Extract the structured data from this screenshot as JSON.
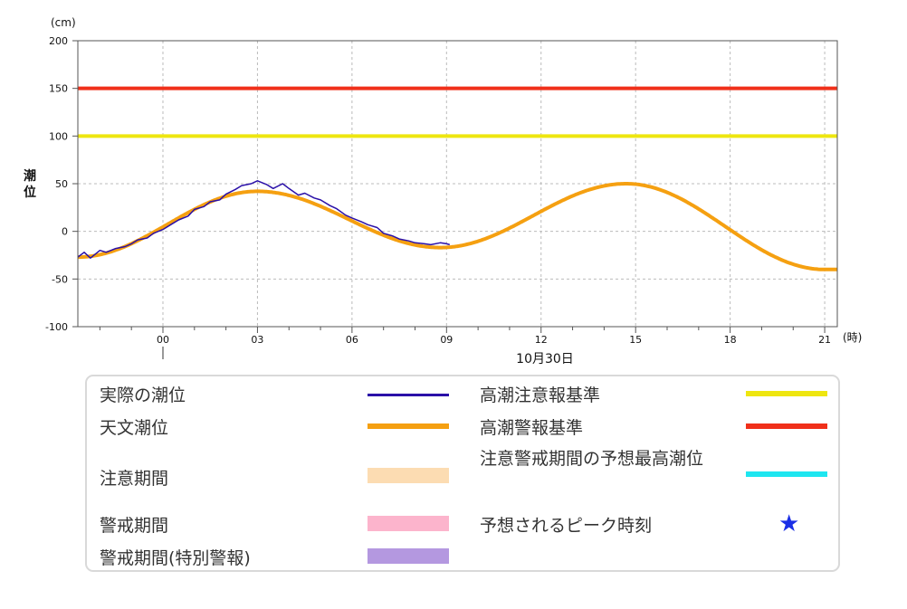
{
  "chart_data": {
    "type": "line",
    "y_unit": "(cm)",
    "ylabel": "潮位",
    "x_unit": "(時)",
    "date_label": "10月30日",
    "ylim": [
      -100,
      200
    ],
    "yticks": [
      200,
      150,
      100,
      50,
      0,
      -50,
      -100
    ],
    "xticks": [
      "00",
      "03",
      "06",
      "09",
      "12",
      "15",
      "18",
      "21"
    ],
    "xlim_hours": [
      -2.7,
      21.4
    ],
    "grid": true,
    "series": [
      {
        "name": "実際の潮位",
        "color": "#2a10a8",
        "x_hours": [
          -2.7,
          -2.5,
          -2.3,
          -2.0,
          -1.8,
          -1.5,
          -1.2,
          -1.0,
          -0.8,
          -0.5,
          -0.3,
          0.0,
          0.3,
          0.5,
          0.8,
          1.0,
          1.3,
          1.5,
          1.8,
          2.0,
          2.3,
          2.5,
          2.8,
          3.0,
          3.3,
          3.5,
          3.8,
          4.0,
          4.3,
          4.5,
          4.8,
          5.0,
          5.3,
          5.5,
          5.8,
          6.0,
          6.3,
          6.5,
          6.8,
          7.0,
          7.3,
          7.5,
          7.8,
          8.0,
          8.3,
          8.5,
          8.8,
          9.0,
          9.1
        ],
        "values": [
          -27,
          -22,
          -28,
          -20,
          -22,
          -18,
          -16,
          -13,
          -9,
          -7,
          -2,
          2,
          8,
          12,
          16,
          23,
          26,
          31,
          33,
          39,
          44,
          48,
          50,
          53,
          49,
          45,
          50,
          45,
          38,
          40,
          35,
          33,
          27,
          24,
          17,
          14,
          10,
          7,
          4,
          -2,
          -5,
          -8,
          -10,
          -12,
          -13,
          -14,
          -12,
          -13,
          -14
        ]
      },
      {
        "name": "天文潮位",
        "color": "#f5a011",
        "model": "tide",
        "x_hours_range": [
          -2.7,
          21.4
        ],
        "values_at": {
          "-2.7": -27,
          "3.0": 42,
          "8.8": -17,
          "14.7": 50,
          "21.0": -40
        }
      },
      {
        "name": "高潮注意報基準",
        "color": "#eee610",
        "value": 100
      },
      {
        "name": "高潮警報基準",
        "color": "#f0301a",
        "value": 150
      }
    ]
  },
  "legend": {
    "items": [
      {
        "label": "実際の潮位",
        "color": "#2a10a8"
      },
      {
        "label": "天文潮位",
        "color": "#f5a011"
      },
      {
        "label": "注意期間",
        "color": "#fcdcb2"
      },
      {
        "label": "警戒期間",
        "color": "#fcb4cc"
      },
      {
        "label": "警戒期間(特別警報)",
        "color": "#b498e0"
      },
      {
        "label": "高潮注意報基準",
        "color": "#eee610"
      },
      {
        "label": "高潮警報基準",
        "color": "#f0301a"
      },
      {
        "label": "注意警戒期間の予想最高潮位",
        "color": "#1ee6f0"
      },
      {
        "label": "予想されるピーク時刻",
        "color": "#1a2fe6",
        "icon": "star-icon"
      }
    ]
  }
}
